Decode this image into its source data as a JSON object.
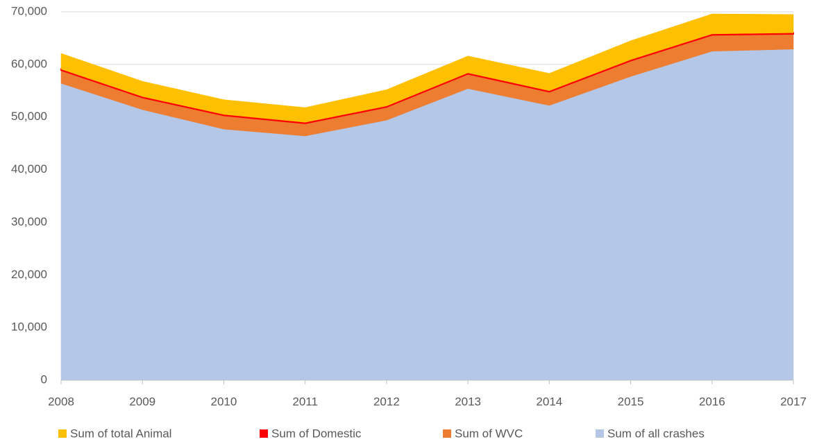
{
  "chart_data": {
    "type": "stacked_area",
    "categories": [
      "2008",
      "2009",
      "2010",
      "2011",
      "2012",
      "2013",
      "2014",
      "2015",
      "2016",
      "2017"
    ],
    "series": [
      {
        "name": "Sum of total Animal",
        "color": "#ffc000",
        "values": [
          3000,
          2900,
          2800,
          2800,
          3100,
          3200,
          3300,
          3600,
          3800,
          3500
        ]
      },
      {
        "name": "Sum of Domestic",
        "color": "#ff0000",
        "values": [
          200,
          200,
          200,
          200,
          200,
          200,
          200,
          200,
          200,
          200
        ]
      },
      {
        "name": "Sum of WVC",
        "color": "#ed7d31",
        "values": [
          2500,
          2300,
          2600,
          2400,
          2500,
          2800,
          2600,
          3000,
          3100,
          2900
        ]
      },
      {
        "name": "Sum of all crashes",
        "color": "#b4c7e7",
        "values": [
          56400,
          51400,
          47700,
          46400,
          49400,
          55400,
          52200,
          57700,
          62500,
          62900
        ]
      }
    ],
    "ylim": [
      0,
      70000
    ],
    "yticks": [
      0,
      {
        "value": 10000,
        "label": "10,000"
      },
      {
        "value": 20000,
        "label": "20,000"
      },
      {
        "value": 30000,
        "label": "30,000"
      },
      {
        "value": 40000,
        "label": "40,000"
      },
      {
        "value": 50000,
        "label": "50,000"
      },
      {
        "value": 60000,
        "label": "60,000"
      },
      {
        "value": 70000,
        "label": "70,000"
      }
    ],
    "grid": true,
    "legend": "bottom"
  }
}
